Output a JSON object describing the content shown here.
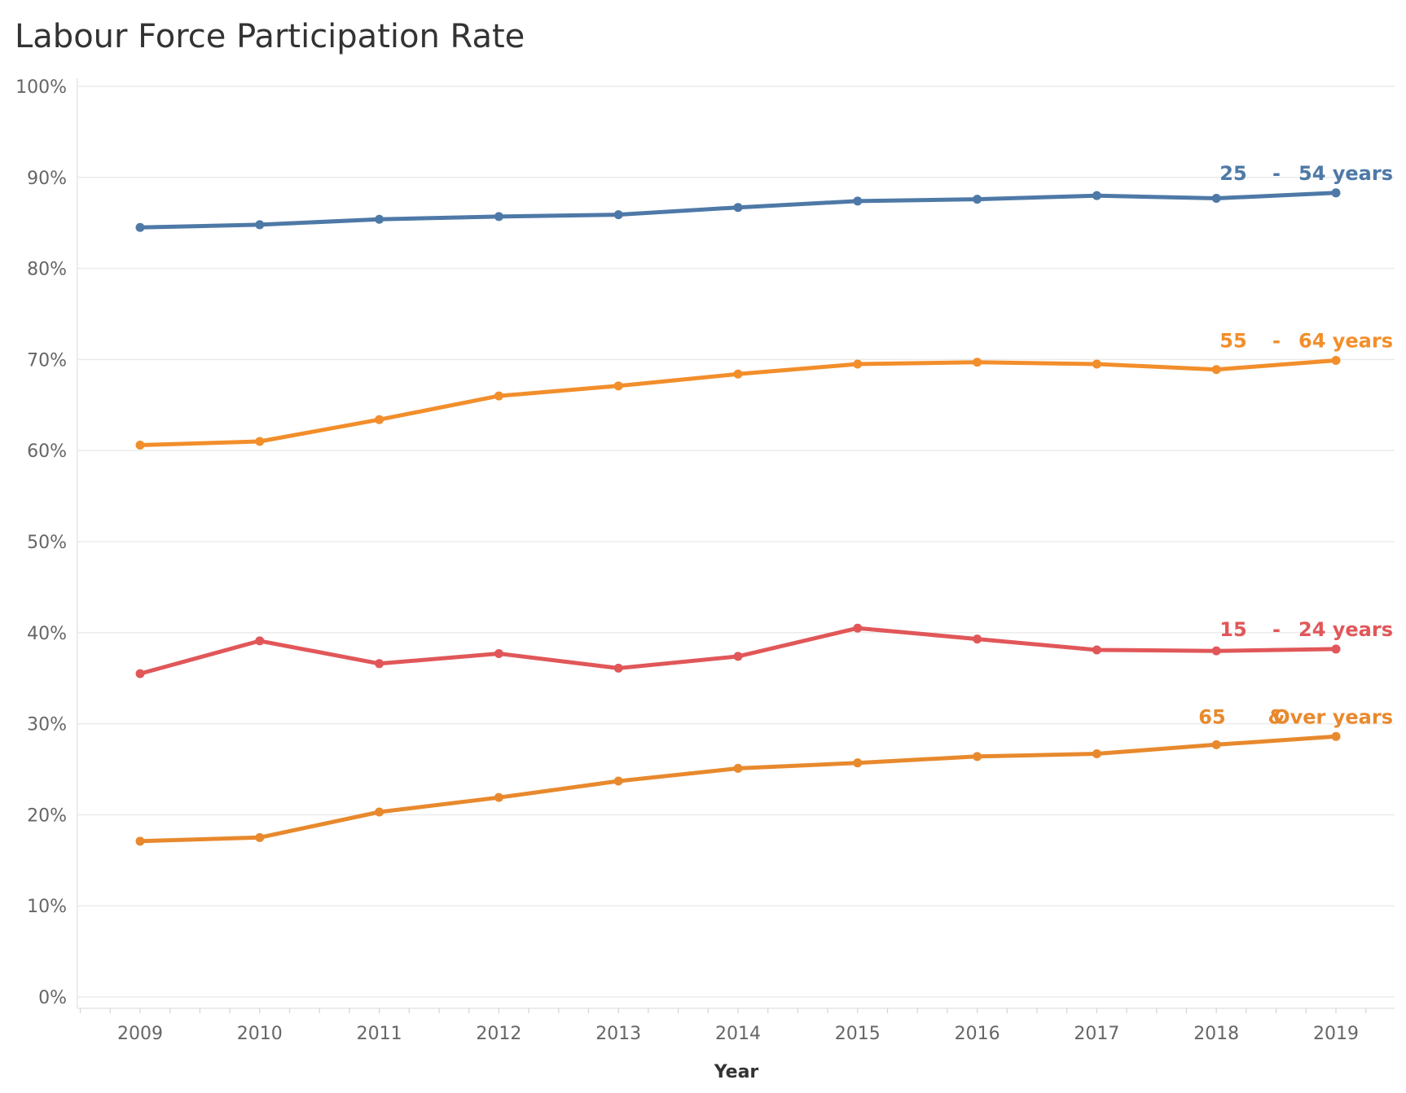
{
  "chart_data": {
    "type": "line",
    "title": "Labour Force Participation Rate",
    "xlabel": "Year",
    "ylabel": "",
    "ylim": [
      0,
      100
    ],
    "x": [
      2009,
      2010,
      2011,
      2012,
      2013,
      2014,
      2015,
      2016,
      2017,
      2018,
      2019
    ],
    "y_ticks": [
      "0%",
      "10%",
      "20%",
      "30%",
      "40%",
      "50%",
      "60%",
      "70%",
      "80%",
      "90%",
      "100%"
    ],
    "grid": true,
    "legend": "inline labels at right end of each line",
    "series": [
      {
        "name": "25 - 54 years",
        "label_parts": [
          "25",
          "-",
          "54 years"
        ],
        "color": "#4e79a7",
        "values": [
          84.5,
          84.8,
          85.4,
          85.7,
          85.9,
          86.7,
          87.4,
          87.6,
          88.0,
          87.7,
          88.3
        ]
      },
      {
        "name": "55 - 64 years",
        "label_parts": [
          "55",
          "-",
          "64 years"
        ],
        "color": "#f28e2b",
        "values": [
          60.6,
          61.0,
          63.4,
          66.0,
          67.1,
          68.4,
          69.5,
          69.7,
          69.5,
          68.9,
          69.9
        ]
      },
      {
        "name": "15 - 24 years",
        "label_parts": [
          "15",
          "-",
          "24 years"
        ],
        "color": "#e15759",
        "values": [
          35.5,
          39.1,
          36.6,
          37.7,
          36.1,
          37.4,
          40.5,
          39.3,
          38.1,
          38.0,
          38.2
        ]
      },
      {
        "name": "65 & Over years",
        "label_parts": [
          "65",
          "&",
          "Over years"
        ],
        "color": "#e8892d",
        "values": [
          17.1,
          17.5,
          20.3,
          21.9,
          23.7,
          25.1,
          25.7,
          26.4,
          26.7,
          27.7,
          28.6
        ]
      }
    ]
  }
}
